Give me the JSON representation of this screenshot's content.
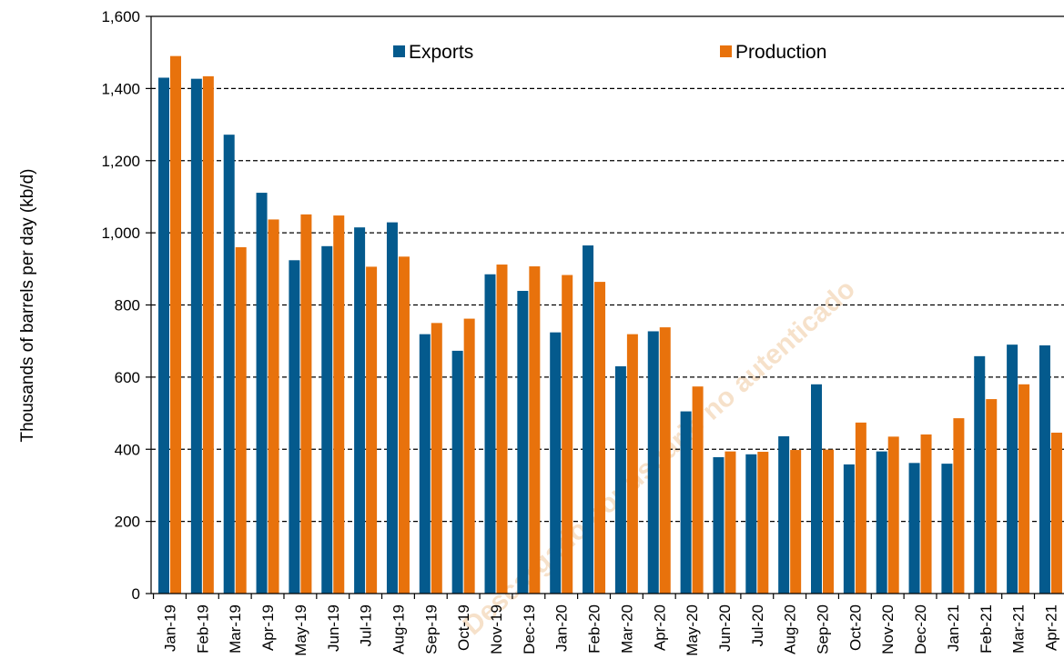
{
  "chart_data": {
    "type": "bar",
    "ylabel": "Thousands of barrels per day (kb/d)",
    "ylim": [
      0,
      1600
    ],
    "yticks": [
      0,
      200,
      400,
      600,
      800,
      1000,
      1200,
      1400,
      1600
    ],
    "ytick_labels": [
      "0",
      "200",
      "400",
      "600",
      "800",
      "1,000",
      "1,200",
      "1,400",
      "1,600"
    ],
    "grid": "horizontal dashed",
    "legend_position": "top",
    "categories": [
      "Jan-19",
      "Feb-19",
      "Mar-19",
      "Apr-19",
      "May-19",
      "Jun-19",
      "Jul-19",
      "Aug-19",
      "Sep-19",
      "Oct-19",
      "Nov-19",
      "Dec-19",
      "Jan-20",
      "Feb-20",
      "Mar-20",
      "Apr-20",
      "May-20",
      "Jun-20",
      "Jul-20",
      "Aug-20",
      "Sep-20",
      "Oct-20",
      "Nov-20",
      "Dec-20",
      "Jan-21",
      "Feb-21",
      "Mar-21",
      "Apr-21"
    ],
    "series": [
      {
        "name": "Exports",
        "color": "#045a8d",
        "values": [
          1430,
          1427,
          1272,
          1111,
          924,
          963,
          1015,
          1029,
          719,
          673,
          885,
          839,
          724,
          965,
          630,
          727,
          505,
          378,
          386,
          436,
          580,
          358,
          394,
          362,
          360,
          658,
          690,
          688
        ]
      },
      {
        "name": "Production",
        "color": "#e8720c",
        "values": [
          1490,
          1434,
          960,
          1037,
          1051,
          1048,
          906,
          934,
          750,
          762,
          912,
          907,
          883,
          864,
          719,
          738,
          574,
          394,
          393,
          398,
          399,
          474,
          435,
          441,
          486,
          539,
          580,
          446
        ]
      }
    ]
  },
  "watermark": "Descargado por usuario no autenticado"
}
